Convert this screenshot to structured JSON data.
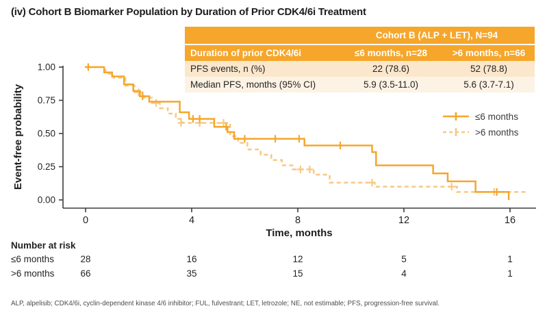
{
  "title": "(iv) Cohort B Biomarker Population by Duration of Prior CDK4/6i Treatment",
  "summary_table": {
    "header_group": "Cohort B (ALP + LET), N=94",
    "col_header_label": "Duration of prior CDK4/6i",
    "col_headers": [
      "≤6 months, n=28",
      ">6 months, n=66"
    ],
    "rows": [
      {
        "label": "PFS events, n (%)",
        "values": [
          "22 (78.6)",
          "52 (78.8)"
        ]
      },
      {
        "label": "Median PFS, months (95% CI)",
        "values": [
          "5.9 (3.5-11.0)",
          "5.6 (3.7-7.1)"
        ]
      }
    ]
  },
  "chart_data": {
    "type": "line",
    "subtype": "kaplan-meier-step",
    "xlabel": "Time, months",
    "ylabel": "Event-free probability",
    "xlim": [
      0,
      16.9
    ],
    "ylim": [
      0,
      1
    ],
    "grid": false,
    "legend_position": "right-middle",
    "xticks": [
      {
        "value": 0,
        "label": "0"
      },
      {
        "value": 4,
        "label": "4"
      },
      {
        "value": 8,
        "label": "8"
      },
      {
        "value": 12,
        "label": "12"
      },
      {
        "value": 16,
        "label": "16"
      }
    ],
    "yticks": [
      {
        "value": 1.0,
        "label": "1.00"
      },
      {
        "value": 0.75,
        "label": "0.75"
      },
      {
        "value": 0.5,
        "label": "0.50"
      },
      {
        "value": 0.25,
        "label": "0.25"
      },
      {
        "value": 0.0,
        "label": "0.00"
      }
    ],
    "series": [
      {
        "name": "≤6 months",
        "style": "solid",
        "color": "#F5A62B",
        "points": [
          [
            0,
            1.0
          ],
          [
            0.7,
            0.96
          ],
          [
            1.0,
            0.93
          ],
          [
            1.45,
            0.87
          ],
          [
            1.8,
            0.82
          ],
          [
            2.05,
            0.78
          ],
          [
            2.4,
            0.74
          ],
          [
            3.55,
            0.66
          ],
          [
            3.9,
            0.61
          ],
          [
            4.85,
            0.55
          ],
          [
            5.35,
            0.51
          ],
          [
            5.6,
            0.46
          ],
          [
            8.25,
            0.41
          ],
          [
            10.8,
            0.36
          ],
          [
            10.95,
            0.26
          ],
          [
            13.1,
            0.2
          ],
          [
            13.65,
            0.14
          ],
          [
            14.7,
            0.06
          ],
          [
            15.95,
            0.0
          ]
        ],
        "censors": [
          [
            0.1,
            1.0
          ],
          [
            2.15,
            0.78
          ],
          [
            4.05,
            0.61
          ],
          [
            4.3,
            0.61
          ],
          [
            5.3,
            0.55
          ],
          [
            6.0,
            0.46
          ],
          [
            7.15,
            0.46
          ],
          [
            8.05,
            0.46
          ],
          [
            9.6,
            0.41
          ],
          [
            15.5,
            0.06
          ]
        ]
      },
      {
        "name": ">6 months",
        "style": "dashed",
        "color": "#F7C884",
        "points": [
          [
            0,
            1.0
          ],
          [
            0.75,
            0.95
          ],
          [
            1.05,
            0.92
          ],
          [
            1.5,
            0.86
          ],
          [
            1.85,
            0.81
          ],
          [
            2.2,
            0.77
          ],
          [
            2.5,
            0.73
          ],
          [
            2.8,
            0.69
          ],
          [
            3.1,
            0.65
          ],
          [
            3.4,
            0.61
          ],
          [
            3.65,
            0.58
          ],
          [
            5.45,
            0.48
          ],
          [
            5.75,
            0.43
          ],
          [
            6.1,
            0.38
          ],
          [
            6.6,
            0.34
          ],
          [
            7.0,
            0.3
          ],
          [
            7.4,
            0.26
          ],
          [
            7.8,
            0.23
          ],
          [
            8.6,
            0.19
          ],
          [
            9.2,
            0.13
          ],
          [
            10.9,
            0.1
          ],
          [
            14.0,
            0.06
          ],
          [
            16.55,
            0.03
          ]
        ],
        "censors": [
          [
            2.0,
            0.81
          ],
          [
            2.66,
            0.73
          ],
          [
            3.6,
            0.58
          ],
          [
            4.3,
            0.58
          ],
          [
            5.2,
            0.58
          ],
          [
            8.1,
            0.23
          ],
          [
            8.45,
            0.23
          ],
          [
            10.8,
            0.13
          ],
          [
            13.8,
            0.1
          ],
          [
            15.4,
            0.06
          ]
        ]
      }
    ]
  },
  "risk_table": {
    "title": "Number at risk",
    "times": [
      0,
      4,
      8,
      12,
      16
    ],
    "rows": [
      {
        "label": "≤6 months",
        "counts": [
          "28",
          "16",
          "12",
          "5",
          "1"
        ]
      },
      {
        "label": ">6 months",
        "counts": [
          "66",
          "35",
          "15",
          "4",
          "1"
        ]
      }
    ]
  },
  "footnote": "ALP, alpelisib; CDK4/6i, cyclin-dependent kinase 4/6 inhibitor; FUL, fulvestrant; LET, letrozole; NE, not estimable; PFS, progression-free survival.",
  "colors": {
    "accent_orange": "#F5A62B",
    "light_orange": "#F7C884",
    "row_peach": "#FAE7CC",
    "row_cream": "#FCF3E4",
    "axis": "#3C3C3B",
    "text": "#231F20"
  }
}
